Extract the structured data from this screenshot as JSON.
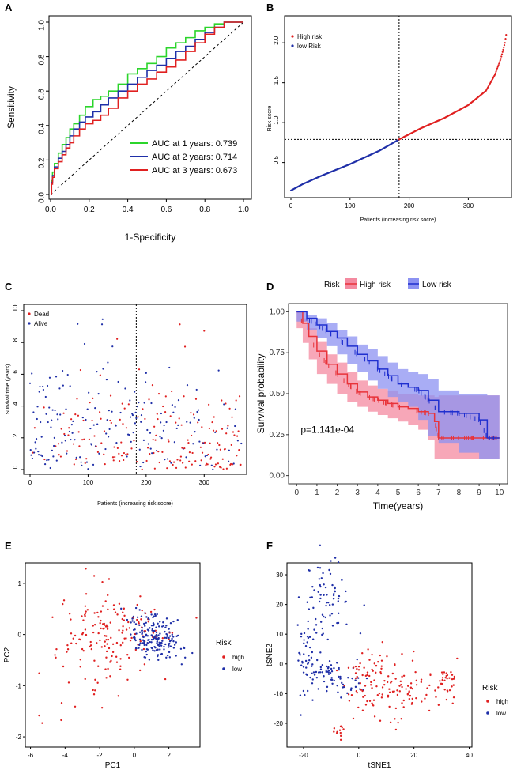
{
  "chart_data": [
    {
      "panel": "A",
      "type": "line",
      "title": "",
      "xlabel": "1-Specificity",
      "ylabel": "Sensitivity",
      "xlim": [
        0,
        1
      ],
      "ylim": [
        0,
        1
      ],
      "xticks": [
        "0.0",
        "0.2",
        "0.4",
        "0.6",
        "0.8",
        "1.0"
      ],
      "yticks": [
        "0.0",
        "0.2",
        "0.4",
        "0.6",
        "0.8",
        "1.0"
      ],
      "reference_line": "diagonal",
      "series": [
        {
          "name": "AUC at 1 years: 0.739",
          "color": "#2bd52b",
          "x": [
            0,
            0.005,
            0.01,
            0.02,
            0.04,
            0.06,
            0.08,
            0.1,
            0.12,
            0.15,
            0.18,
            0.22,
            0.26,
            0.3,
            0.35,
            0.4,
            0.45,
            0.5,
            0.55,
            0.6,
            0.65,
            0.7,
            0.75,
            0.8,
            0.85,
            0.9,
            1.0
          ],
          "y": [
            0,
            0.08,
            0.13,
            0.18,
            0.24,
            0.29,
            0.33,
            0.38,
            0.41,
            0.46,
            0.51,
            0.55,
            0.57,
            0.6,
            0.64,
            0.7,
            0.73,
            0.76,
            0.8,
            0.85,
            0.88,
            0.91,
            0.95,
            0.97,
            0.99,
            1.0,
            1.0
          ]
        },
        {
          "name": "AUC at 2 years: 0.714",
          "color": "#1f2fa8",
          "x": [
            0,
            0.005,
            0.01,
            0.02,
            0.04,
            0.06,
            0.08,
            0.1,
            0.12,
            0.15,
            0.18,
            0.22,
            0.26,
            0.3,
            0.35,
            0.4,
            0.45,
            0.5,
            0.55,
            0.6,
            0.65,
            0.7,
            0.75,
            0.8,
            0.85,
            0.9,
            1.0
          ],
          "y": [
            0,
            0.07,
            0.11,
            0.16,
            0.21,
            0.25,
            0.29,
            0.34,
            0.38,
            0.42,
            0.45,
            0.48,
            0.52,
            0.56,
            0.6,
            0.64,
            0.68,
            0.72,
            0.75,
            0.79,
            0.83,
            0.86,
            0.9,
            0.94,
            0.97,
            1.0,
            1.0
          ]
        },
        {
          "name": "AUC at 3 years: 0.673",
          "color": "#e02020",
          "x": [
            0,
            0.005,
            0.01,
            0.02,
            0.04,
            0.06,
            0.08,
            0.1,
            0.12,
            0.15,
            0.18,
            0.22,
            0.26,
            0.3,
            0.35,
            0.4,
            0.45,
            0.5,
            0.55,
            0.6,
            0.65,
            0.7,
            0.75,
            0.8,
            0.85,
            0.9,
            1.0
          ],
          "y": [
            0,
            0.06,
            0.1,
            0.15,
            0.19,
            0.23,
            0.27,
            0.3,
            0.34,
            0.38,
            0.41,
            0.43,
            0.46,
            0.5,
            0.56,
            0.6,
            0.64,
            0.67,
            0.71,
            0.74,
            0.78,
            0.83,
            0.88,
            0.93,
            0.97,
            1.0,
            1.0
          ]
        }
      ],
      "legend": [
        "AUC at 1 years: 0.739",
        "AUC at 2 years: 0.714",
        "AUC at 3 years: 0.673"
      ]
    },
    {
      "panel": "B",
      "type": "scatter",
      "xlabel": "Patients (increasing risk socre)",
      "ylabel": "Risk score",
      "xlim": [
        0,
        365
      ],
      "ylim": [
        0.1,
        2.2
      ],
      "xticks": [
        "0",
        "100",
        "200",
        "300"
      ],
      "yticks": [
        "0.5",
        "1.0",
        "1.5",
        "2.0"
      ],
      "cutoff_x": 183,
      "cutoff_y": 0.79,
      "n_low": 183,
      "n_total": 365,
      "legend": [
        {
          "name": "High risk",
          "color": "#e02020"
        },
        {
          "name": "low Risk",
          "color": "#1f2fa8"
        }
      ],
      "curve_x": [
        0,
        20,
        50,
        100,
        150,
        183,
        220,
        260,
        300,
        330,
        345,
        355,
        362,
        365
      ],
      "curve_y": [
        0.15,
        0.23,
        0.33,
        0.48,
        0.65,
        0.79,
        0.93,
        1.06,
        1.22,
        1.4,
        1.6,
        1.8,
        2.0,
        2.15
      ]
    },
    {
      "panel": "C",
      "type": "scatter",
      "xlabel": "Patients (increasing risk socre)",
      "ylabel": "Survival time (years)",
      "xlim": [
        0,
        365
      ],
      "ylim": [
        0,
        10
      ],
      "xticks": [
        "0",
        "100",
        "200",
        "300"
      ],
      "yticks": [
        "0",
        "2",
        "4",
        "6",
        "8",
        "10"
      ],
      "cutoff_x": 183,
      "legend": [
        {
          "name": "Dead",
          "color": "#e02020"
        },
        {
          "name": "Alive",
          "color": "#1f2fa8"
        }
      ]
    },
    {
      "panel": "D",
      "type": "line",
      "xlabel": "Time(years)",
      "ylabel": "Survival probability",
      "xlim": [
        0,
        10
      ],
      "ylim": [
        0,
        1
      ],
      "xticks": [
        "0",
        "1",
        "2",
        "3",
        "4",
        "5",
        "6",
        "7",
        "8",
        "9",
        "10"
      ],
      "yticks": [
        "0.00",
        "0.25",
        "0.50",
        "0.75",
        "1.00"
      ],
      "annotation": "p=1.141e-04",
      "legend_title": "Risk",
      "series": [
        {
          "name": "High risk",
          "color": "#e8333a",
          "band": "#f48aa0",
          "x": [
            0,
            0.3,
            0.6,
            1,
            1.5,
            2,
            2.5,
            3,
            3.5,
            4,
            4.5,
            5,
            5.5,
            6,
            6.5,
            6.8,
            7,
            8,
            9,
            10
          ],
          "y": [
            1.0,
            0.93,
            0.85,
            0.76,
            0.68,
            0.62,
            0.56,
            0.51,
            0.48,
            0.46,
            0.44,
            0.42,
            0.41,
            0.39,
            0.38,
            0.33,
            0.23,
            0.23,
            0.23,
            0.23
          ],
          "lower": [
            1.0,
            0.9,
            0.81,
            0.71,
            0.62,
            0.56,
            0.5,
            0.45,
            0.42,
            0.39,
            0.37,
            0.35,
            0.33,
            0.31,
            0.28,
            0.22,
            0.1,
            0.1,
            0.1,
            0.1
          ],
          "upper": [
            1.0,
            0.96,
            0.9,
            0.82,
            0.74,
            0.69,
            0.63,
            0.58,
            0.55,
            0.53,
            0.52,
            0.5,
            0.5,
            0.49,
            0.49,
            0.48,
            0.49,
            0.49,
            0.49,
            0.49
          ]
        },
        {
          "name": "Low risk",
          "color": "#1f2fcf",
          "band": "#8c92f2",
          "x": [
            0,
            0.5,
            1,
            1.5,
            2,
            2.5,
            3,
            3.5,
            4,
            4.5,
            5,
            5.5,
            6,
            6.5,
            7,
            8,
            9,
            9.4,
            10
          ],
          "y": [
            1.0,
            0.96,
            0.92,
            0.88,
            0.84,
            0.79,
            0.74,
            0.7,
            0.65,
            0.61,
            0.56,
            0.54,
            0.52,
            0.46,
            0.39,
            0.38,
            0.34,
            0.23,
            0.23
          ],
          "lower": [
            1.0,
            0.94,
            0.89,
            0.84,
            0.79,
            0.74,
            0.68,
            0.63,
            0.58,
            0.53,
            0.48,
            0.45,
            0.42,
            0.34,
            0.24,
            0.2,
            0.14,
            0.1,
            0.1
          ],
          "upper": [
            1.0,
            0.98,
            0.96,
            0.93,
            0.89,
            0.85,
            0.8,
            0.77,
            0.73,
            0.69,
            0.65,
            0.63,
            0.62,
            0.59,
            0.52,
            0.5,
            0.5,
            0.49,
            0.49
          ]
        }
      ]
    },
    {
      "panel": "E",
      "type": "scatter",
      "xlabel": "PC1",
      "ylabel": "PC2",
      "xlim": [
        -6.3,
        3.8
      ],
      "ylim": [
        -2.2,
        1.4
      ],
      "xticks": [
        "-6",
        "-4",
        "-2",
        "0",
        "2"
      ],
      "yticks": [
        "-2",
        "-1",
        "0",
        "1"
      ],
      "legend_title": "Risk",
      "legend": [
        {
          "name": "high",
          "color": "#e02020"
        },
        {
          "name": "low",
          "color": "#1f2fa8"
        }
      ]
    },
    {
      "panel": "F",
      "type": "scatter",
      "xlabel": "tSNE1",
      "ylabel": "tSNE2",
      "xlim": [
        -26,
        41
      ],
      "ylim": [
        -28,
        34
      ],
      "xticks": [
        "-20",
        "0",
        "20",
        "40"
      ],
      "yticks": [
        "-20",
        "-10",
        "0",
        "10",
        "20",
        "30"
      ],
      "legend_title": "Risk",
      "legend": [
        {
          "name": "high",
          "color": "#e02020"
        },
        {
          "name": "low",
          "color": "#1f2fa8"
        }
      ]
    }
  ],
  "panels": [
    "A",
    "B",
    "C",
    "D",
    "E",
    "F"
  ]
}
